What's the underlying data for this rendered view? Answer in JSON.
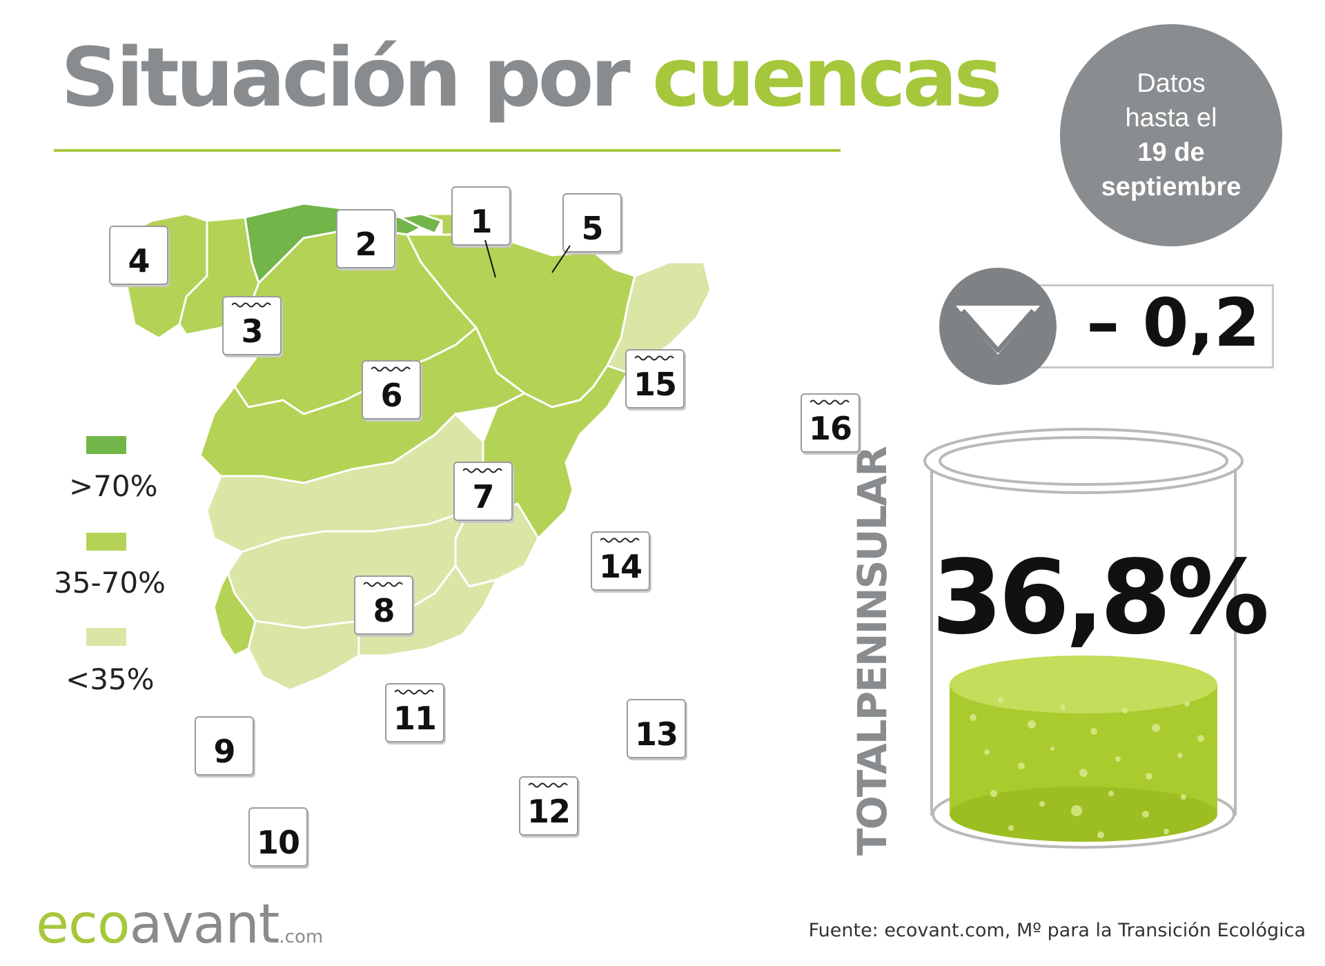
{
  "title": {
    "part1": "Situación por",
    "part2": "cuencas"
  },
  "date_badge": {
    "line1": "Datos",
    "line2": "hasta el",
    "line3": "19 de",
    "line4": "septiembre"
  },
  "weekly_change": {
    "value": "– 0,2",
    "direction_icon": "down-triangle-icon"
  },
  "total": {
    "label": "TOTALPENINSULAR",
    "value": "36,8%",
    "level": 0.368
  },
  "legend": [
    {
      "label": ">70%",
      "color": "#72b548"
    },
    {
      "label": "35-70%",
      "color": "#b4d255"
    },
    {
      "label": "<35%",
      "color": "#d9e6a6"
    }
  ],
  "basins": [
    {
      "number": "1",
      "category": ">70%"
    },
    {
      "number": "2",
      "category": ">70%"
    },
    {
      "number": "3",
      "category": "35-70%"
    },
    {
      "number": "4",
      "category": "35-70%"
    },
    {
      "number": "5",
      "category": "35-70%"
    },
    {
      "number": "6",
      "category": "35-70%"
    },
    {
      "number": "7",
      "category": "35-70%"
    },
    {
      "number": "8",
      "category": "<35%"
    },
    {
      "number": "9",
      "category": "35-70%"
    },
    {
      "number": "10",
      "category": "<35%"
    },
    {
      "number": "11",
      "category": "<35%"
    },
    {
      "number": "12",
      "category": "<35%"
    },
    {
      "number": "13",
      "category": "<35%"
    },
    {
      "number": "14",
      "category": "35-70%"
    },
    {
      "number": "15",
      "category": "35-70%"
    },
    {
      "number": "16",
      "category": "<35%"
    }
  ],
  "logo": {
    "eco": "eco",
    "avant": "avant",
    "com": ".com"
  },
  "source": "Fuente: ecovant.com, Mº para la Transición Ecológica"
}
